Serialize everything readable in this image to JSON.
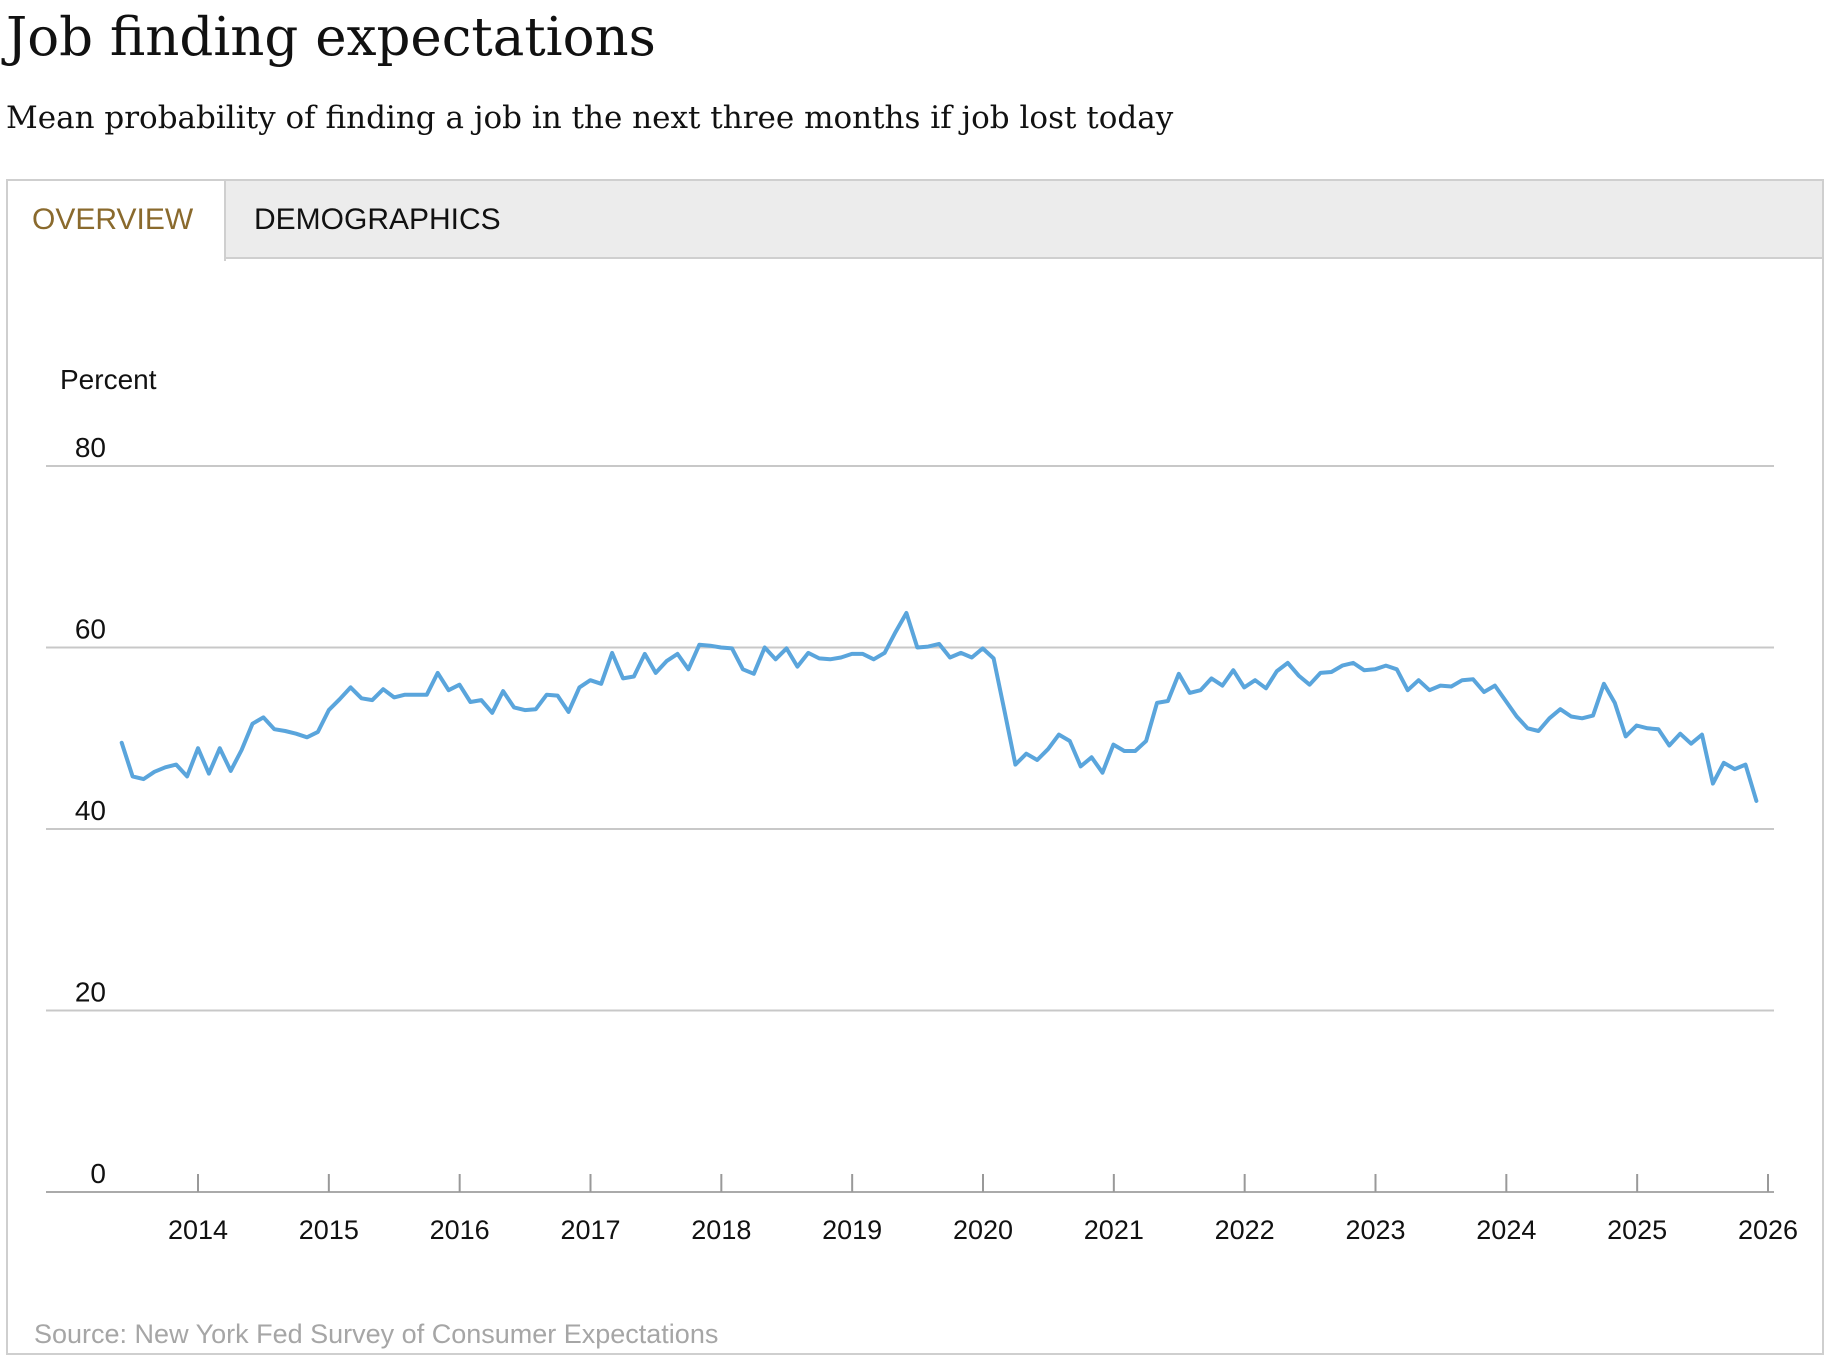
{
  "header": {
    "title": "Job finding expectations",
    "subtitle": "Mean probability of finding a job in the next three months if job lost today"
  },
  "tabs": [
    {
      "label": "OVERVIEW",
      "active": true
    },
    {
      "label": "DEMOGRAPHICS",
      "active": false
    }
  ],
  "source": "Source: New York Fed Survey of Consumer Expectations",
  "colors": {
    "line": "#5aa5dc",
    "grid": "#c8c8c8",
    "active_tab_text": "#8a6a2d"
  },
  "chart_data": {
    "type": "line",
    "title": "Job finding expectations",
    "subtitle": "Mean probability of finding a job in the next three months if job lost today",
    "ylabel": "Percent",
    "xlabel": "",
    "ylim": [
      0,
      80
    ],
    "yticks": [
      0,
      20,
      40,
      60,
      80
    ],
    "xlim": [
      2013.4167,
      2026.0
    ],
    "xticks": [
      2014,
      2015,
      2016,
      2017,
      2018,
      2019,
      2020,
      2021,
      2022,
      2023,
      2024,
      2025,
      2026
    ],
    "grid": true,
    "legend": "none",
    "series": [
      {
        "name": "Mean probability",
        "start": 2013.4167,
        "step": 0.0833,
        "values": [
          49.5,
          45.8,
          45.5,
          46.3,
          46.8,
          47.1,
          45.8,
          48.9,
          46.1,
          48.9,
          46.4,
          48.7,
          51.6,
          52.3,
          51.0,
          50.8,
          50.5,
          50.1,
          50.7,
          53.1,
          54.3,
          55.6,
          54.4,
          54.2,
          55.4,
          54.5,
          54.8,
          54.8,
          54.8,
          57.2,
          55.3,
          55.9,
          54.0,
          54.2,
          52.8,
          55.2,
          53.4,
          53.1,
          53.2,
          54.8,
          54.7,
          52.9,
          55.6,
          56.4,
          56.0,
          59.4,
          56.6,
          56.8,
          59.3,
          57.2,
          58.5,
          59.3,
          57.6,
          60.3,
          60.2,
          60.0,
          59.9,
          57.6,
          57.1,
          60.0,
          58.7,
          59.9,
          57.9,
          59.4,
          58.8,
          58.7,
          58.9,
          59.3,
          59.3,
          58.7,
          59.4,
          61.7,
          63.8,
          60.0,
          60.1,
          60.4,
          58.9,
          59.4,
          58.9,
          59.9,
          58.8,
          53.0,
          47.1,
          48.3,
          47.6,
          48.8,
          50.4,
          49.7,
          46.9,
          47.9,
          46.2,
          49.3,
          48.6,
          48.6,
          49.7,
          53.9,
          54.1,
          57.1,
          55.0,
          55.3,
          56.6,
          55.8,
          57.5,
          55.6,
          56.4,
          55.5,
          57.4,
          58.3,
          56.9,
          55.9,
          57.2,
          57.3,
          58.0,
          58.3,
          57.5,
          57.6,
          58.0,
          57.6,
          55.3,
          56.4,
          55.3,
          55.8,
          55.7,
          56.4,
          56.5,
          55.1,
          55.8,
          54.1,
          52.4,
          51.1,
          50.8,
          52.2,
          53.2,
          52.4,
          52.2,
          52.5,
          56.0,
          53.9,
          50.2,
          51.4,
          51.1,
          51.0,
          49.2,
          50.5,
          49.4,
          50.4,
          45.0,
          47.3,
          46.6,
          47.1,
          43.1
        ]
      }
    ]
  }
}
